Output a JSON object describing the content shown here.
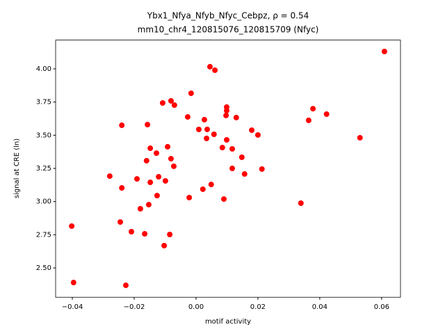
{
  "chart_data": {
    "type": "scatter",
    "title": "Ybx1_Nfya_Nfyb_Nfyc_Cebpz, ρ = 0.54",
    "subtitle": "mm10_chr4_120815076_120815709 (Nfyc)",
    "x_label": "motif activity",
    "y_label": "signal at CRE (ln)",
    "color": "#ff0000",
    "xlim": [
      -0.0454,
      0.0661
    ],
    "ylim": [
      2.279,
      4.217
    ],
    "xticks": [
      {
        "value": -0.04,
        "label": "−0.04"
      },
      {
        "value": -0.02,
        "label": "−0.02"
      },
      {
        "value": 0,
        "label": "0.00"
      },
      {
        "value": 0.02,
        "label": "0.02"
      },
      {
        "value": 0.04,
        "label": "0.04"
      },
      {
        "value": 0.06,
        "label": "0.06"
      }
    ],
    "yticks": [
      {
        "value": 2.5,
        "label": "2.50"
      },
      {
        "value": 2.75,
        "label": "2.75"
      },
      {
        "value": 3,
        "label": "3.00"
      },
      {
        "value": 3.25,
        "label": "3.25"
      },
      {
        "value": 3.5,
        "label": "3.50"
      },
      {
        "value": 3.75,
        "label": "3.75"
      },
      {
        "value": 4,
        "label": "4.00"
      }
    ],
    "x": [
      0.0609,
      0.0045,
      0.0061,
      -0.0016,
      -0.0108,
      -0.0081,
      -0.007,
      0.0099,
      0.0099,
      0.0097,
      0.0027,
      0.013,
      0.0378,
      0.0422,
      0.0364,
      -0.0027,
      -0.024,
      -0.0157,
      0.0009,
      0.0036,
      0.0058,
      0.0034,
      0.0099,
      0.018,
      0.02,
      0.053,
      -0.0148,
      -0.0092,
      -0.0128,
      0.0085,
      0.0117,
      0.0148,
      -0.016,
      -0.0081,
      -0.0072,
      0.0117,
      0.0213,
      0.0157,
      -0.0279,
      -0.0121,
      -0.0191,
      -0.0099,
      -0.0148,
      -0.024,
      0.0049,
      0.0022,
      -0.0126,
      -0.0022,
      0.009,
      0.0339,
      -0.0153,
      -0.018,
      -0.0245,
      -0.0402,
      -0.0209,
      -0.0166,
      -0.0085,
      -0.0103,
      -0.0396,
      -0.0227
    ],
    "values": [
      4.131,
      4.016,
      3.99,
      3.816,
      3.743,
      3.759,
      3.727,
      3.712,
      3.685,
      3.649,
      3.617,
      3.633,
      3.7,
      3.659,
      3.612,
      3.638,
      3.575,
      3.58,
      3.544,
      3.544,
      3.507,
      3.476,
      3.465,
      3.538,
      3.502,
      3.481,
      3.402,
      3.413,
      3.365,
      3.407,
      3.397,
      3.334,
      3.308,
      3.323,
      3.266,
      3.25,
      3.245,
      3.208,
      3.192,
      3.187,
      3.171,
      3.156,
      3.145,
      3.103,
      3.129,
      3.093,
      3.045,
      3.03,
      3.019,
      2.988,
      2.977,
      2.946,
      2.846,
      2.815,
      2.773,
      2.757,
      2.752,
      2.668,
      2.39,
      2.369
    ]
  }
}
